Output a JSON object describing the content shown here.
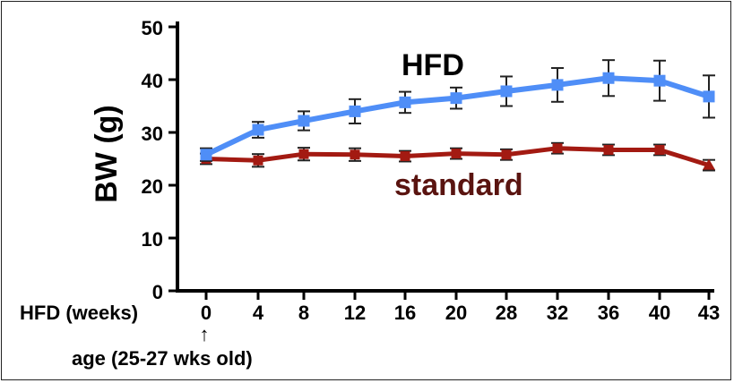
{
  "chart_data": {
    "type": "line",
    "title": "",
    "ylabel": "BW (g)",
    "xlabel": "HFD (weeks)",
    "x_caption": "age (25-27 wks old)",
    "x_caption_arrow": "↑",
    "categories": [
      "0",
      "4",
      "8",
      "12",
      "16",
      "20",
      "28",
      "32",
      "36",
      "40",
      "43"
    ],
    "ylim": [
      0,
      50
    ],
    "yticks": [
      "0",
      "10",
      "20",
      "30",
      "40",
      "50"
    ],
    "grid": false,
    "series": [
      {
        "name": "HFD",
        "color": "#4f8ef7",
        "values": [
          25.8,
          30.5,
          32.2,
          34.0,
          35.7,
          36.5,
          37.8,
          39.0,
          40.3,
          39.8,
          36.8
        ],
        "errors": [
          1.2,
          1.5,
          1.8,
          2.3,
          2.0,
          2.0,
          2.8,
          3.2,
          3.4,
          3.8,
          4.0
        ]
      },
      {
        "name": "standard",
        "color": "#a31a12",
        "values": [
          25.0,
          24.7,
          25.9,
          25.8,
          25.5,
          26.0,
          25.8,
          27.0,
          26.7,
          26.7,
          23.8
        ],
        "errors": [
          1.0,
          1.2,
          1.2,
          1.2,
          1.0,
          1.0,
          1.0,
          1.0,
          1.0,
          1.0,
          1.0
        ]
      }
    ]
  }
}
